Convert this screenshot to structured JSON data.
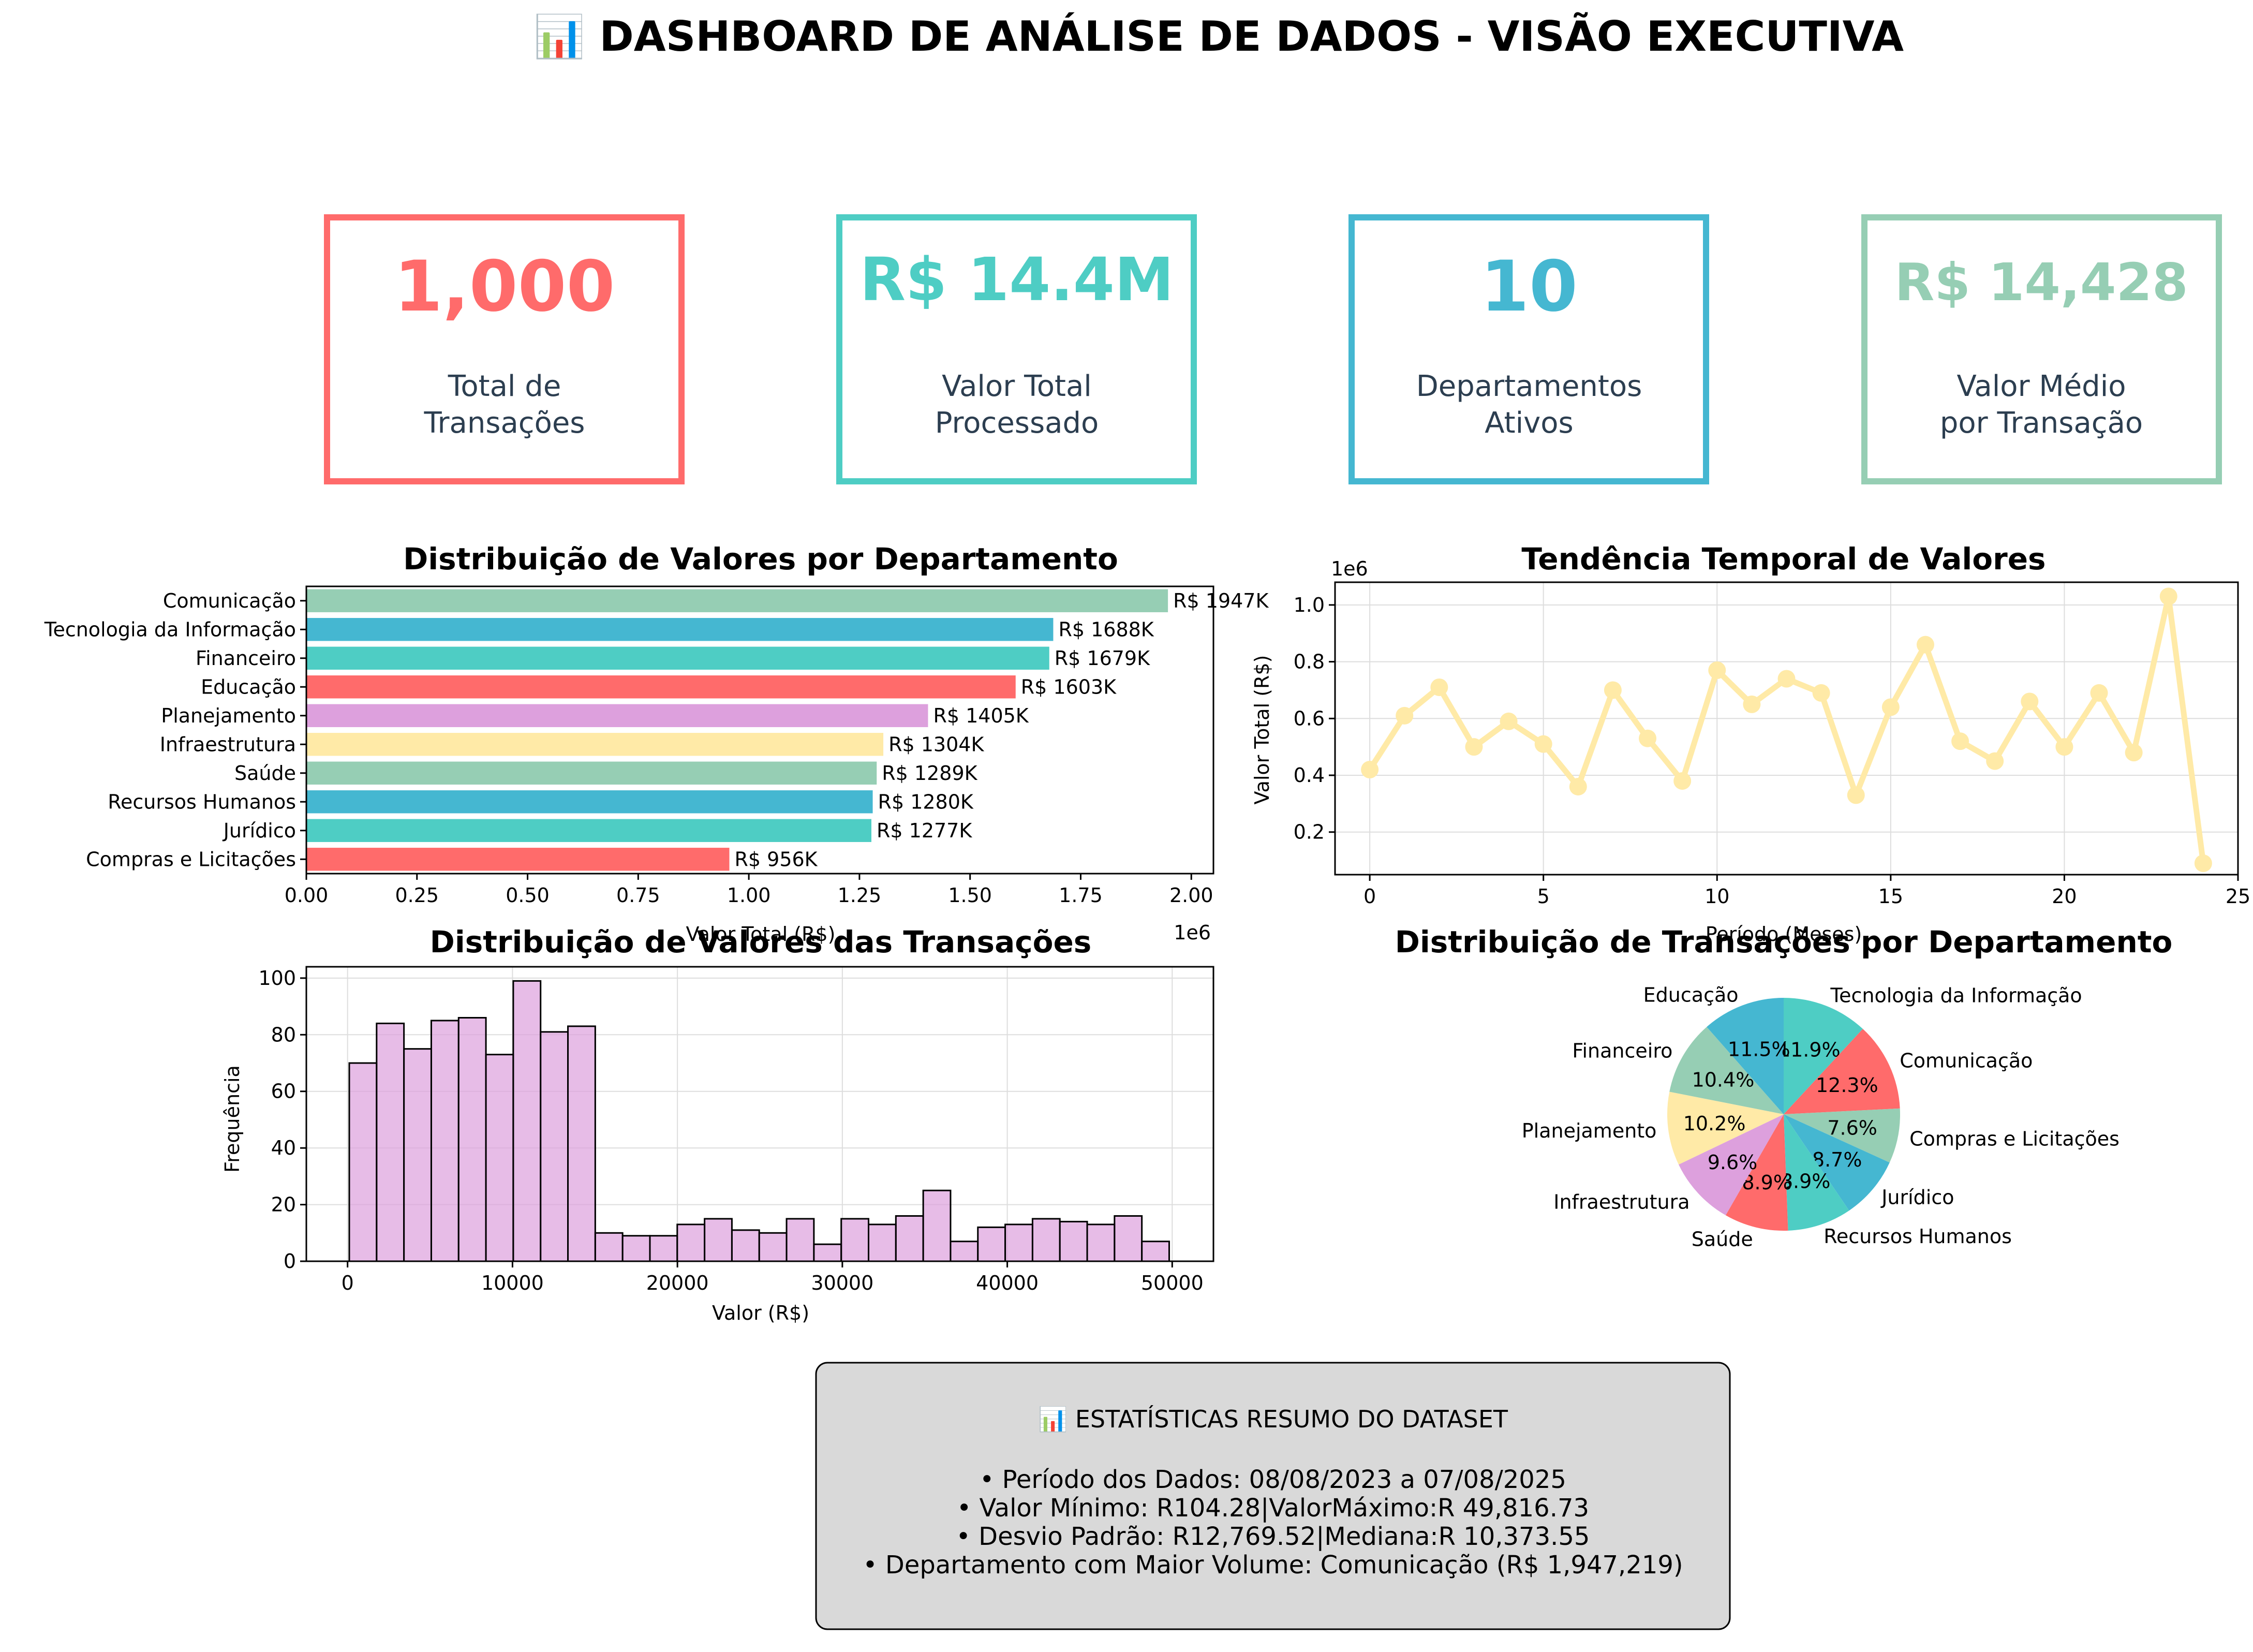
{
  "title": "📊 DASHBOARD DE ANÁLISE DE DADOS - VISÃO EXECUTIVA",
  "kpis": [
    {
      "value": "1,000",
      "label_line1": "Total de",
      "label_line2": "Transações",
      "color": "#FF6B6B"
    },
    {
      "value": "R$ 14.4M",
      "label_line1": "Valor Total",
      "label_line2": "Processado",
      "color": "#4ECDC4"
    },
    {
      "value": "10",
      "label_line1": "Departamentos",
      "label_line2": "Ativos",
      "color": "#45B7D1"
    },
    {
      "value": "R$ 14,428",
      "label_line1": "Valor Médio",
      "label_line2": "por Transação",
      "color": "#96CEB4"
    }
  ],
  "colors": {
    "palette": [
      "#FF6B6B",
      "#4ECDC4",
      "#45B7D1",
      "#96CEB4",
      "#FFEAA7",
      "#DDA0DD"
    ],
    "kpi_text": "#2C3E50",
    "hist_fill": "#DDA0DD",
    "line": "#FFEAA7",
    "summary_bg": "#D9D9D9"
  },
  "summary": {
    "header": "📊 ESTATÍSTICAS RESUMO DO DATASET",
    "lines": [
      "• Período dos Dados: 08/08/2023 a 07/08/2025",
      "• Valor Mínimo: R104.28|ValorMáximo:R 49,816.73",
      "• Desvio Padrão: R12,769.52|Mediana:R 10,373.55",
      "• Departamento com Maior Volume: Comunicação (R$ 1,947,219)"
    ]
  },
  "chart_data": [
    {
      "type": "bar",
      "orientation": "horizontal",
      "title": "Distribuição de Valores por Departamento",
      "xlabel": "Valor Total (R$)",
      "ylabel": "",
      "xlim": [
        0,
        2050000
      ],
      "x_ticks": [
        "0.00",
        "0.25",
        "0.50",
        "0.75",
        "1.00",
        "1.25",
        "1.50",
        "1.75",
        "2.00"
      ],
      "x_offset_label": "1e6",
      "categories": [
        "Comunicação",
        "Tecnologia da Informação",
        "Financeiro",
        "Educação",
        "Planejamento",
        "Infraestrutura",
        "Saúde",
        "Recursos Humanos",
        "Jurídico",
        "Compras e Licitações"
      ],
      "values": [
        1947219,
        1688000,
        1679000,
        1603000,
        1405000,
        1304000,
        1289000,
        1280000,
        1277000,
        956000
      ],
      "labels": [
        "R$ 1947K",
        "R$ 1688K",
        "R$ 1679K",
        "R$ 1603K",
        "R$ 1405K",
        "R$ 1304K",
        "R$ 1289K",
        "R$ 1280K",
        "R$ 1277K",
        "R$ 956K"
      ],
      "colors": [
        "#96CEB4",
        "#45B7D1",
        "#4ECDC4",
        "#FF6B6B",
        "#DDA0DD",
        "#FFEAA7",
        "#96CEB4",
        "#45B7D1",
        "#4ECDC4",
        "#FF6B6B"
      ]
    },
    {
      "type": "line",
      "title": "Tendência Temporal de Valores",
      "xlabel": "Período (Meses)",
      "ylabel": "Valor Total (R$)",
      "y_offset_label": "1e6",
      "xlim": [
        -1,
        25
      ],
      "ylim": [
        0.05,
        1.08
      ],
      "x_ticks": [
        "0",
        "5",
        "10",
        "15",
        "20",
        "25"
      ],
      "y_ticks": [
        "0.2",
        "0.4",
        "0.6",
        "0.8",
        "1.0"
      ],
      "grid": true,
      "x": [
        0,
        1,
        2,
        3,
        4,
        5,
        6,
        7,
        8,
        9,
        10,
        11,
        12,
        13,
        14,
        15,
        16,
        17,
        18,
        19,
        20,
        21,
        22,
        23,
        24
      ],
      "y": [
        0.42,
        0.61,
        0.71,
        0.5,
        0.59,
        0.51,
        0.36,
        0.7,
        0.53,
        0.38,
        0.77,
        0.65,
        0.74,
        0.69,
        0.33,
        0.64,
        0.86,
        0.52,
        0.45,
        0.66,
        0.5,
        0.69,
        0.48,
        1.03,
        0.09
      ]
    },
    {
      "type": "histogram",
      "title": "Distribuição de Valores das Transações",
      "xlabel": "Valor (R$)",
      "ylabel": "Frequência",
      "grid": true,
      "xlim": [
        -2500,
        52500
      ],
      "ylim": [
        0,
        104
      ],
      "x_ticks": [
        "0",
        "10000",
        "20000",
        "30000",
        "40000",
        "50000"
      ],
      "y_ticks": [
        "0",
        "20",
        "40",
        "60",
        "80",
        "100"
      ],
      "bin_start": 104.28,
      "bin_end": 49816.73,
      "counts": [
        70,
        84,
        75,
        85,
        86,
        73,
        99,
        81,
        83,
        10,
        9,
        9,
        13,
        15,
        11,
        10,
        15,
        6,
        15,
        13,
        16,
        25,
        7,
        12,
        13,
        15,
        14,
        13,
        16,
        7
      ]
    },
    {
      "type": "pie",
      "title": "Distribuição de Transações por Departamento",
      "categories": [
        "Tecnologia da Informação",
        "Comunicação",
        "Compras e Licitações",
        "Jurídico",
        "Recursos Humanos",
        "Saúde",
        "Infraestrutura",
        "Planejamento",
        "Financeiro",
        "Educação"
      ],
      "values": [
        11.9,
        12.3,
        7.6,
        8.7,
        8.9,
        8.9,
        9.6,
        10.2,
        10.4,
        11.5
      ],
      "labels": [
        "11.9%",
        "12.3%",
        "7.6%",
        "8.7%",
        "8.9%",
        "8.9%",
        "9.6%",
        "10.2%",
        "10.4%",
        "11.5%"
      ],
      "colors": [
        "#4ECDC4",
        "#FF6B6B",
        "#96CEB4",
        "#45B7D1",
        "#4ECDC4",
        "#FF6B6B",
        "#DDA0DD",
        "#FFEAA7",
        "#96CEB4",
        "#45B7D1"
      ]
    }
  ]
}
